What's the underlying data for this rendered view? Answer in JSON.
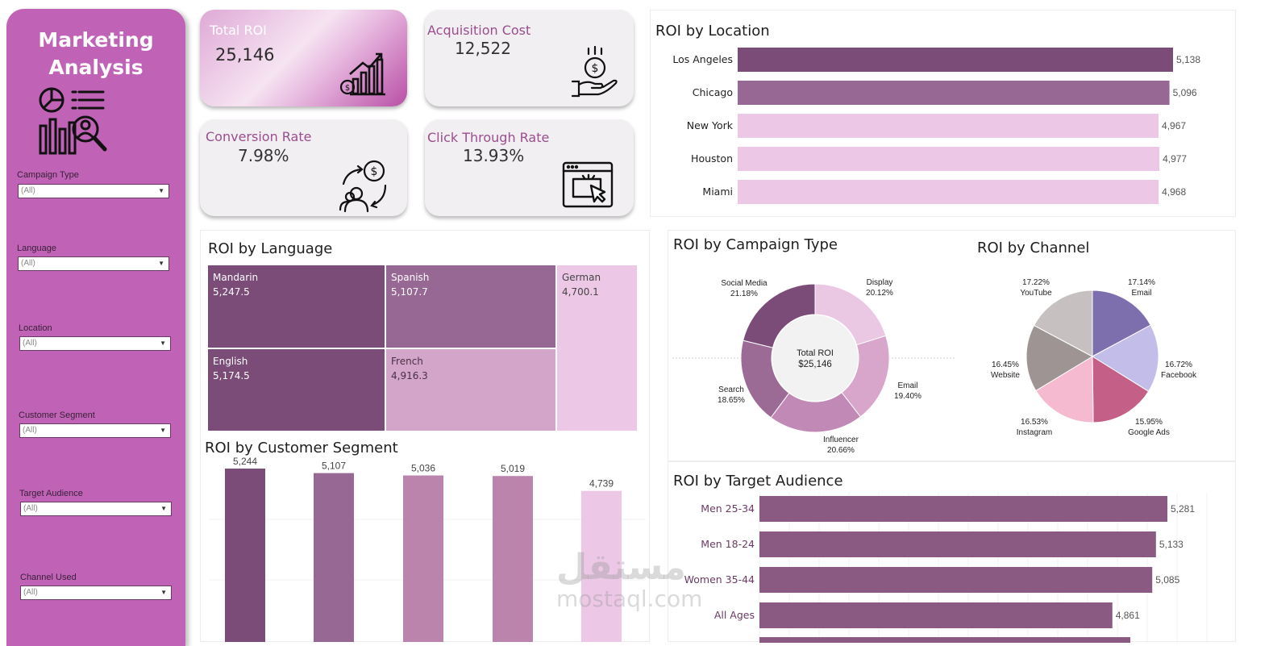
{
  "sidebar": {
    "title_line1": "Marketing",
    "title_line2": "Analysis",
    "filters": [
      {
        "label": "Campaign Type",
        "value": "(All)"
      },
      {
        "label": "Language",
        "value": "(All)"
      },
      {
        "label": "Location",
        "value": "(All)"
      },
      {
        "label": "Customer Segment",
        "value": "(All)"
      },
      {
        "label": "Target Audience",
        "value": "(All)"
      },
      {
        "label": "Channel Used",
        "value": "(All)"
      }
    ]
  },
  "kpis": {
    "total_roi": {
      "label": "Total ROI",
      "value": "25,146"
    },
    "acquisition_cost": {
      "label": "Acquisition Cost",
      "value": "12,522"
    },
    "conversion_rate": {
      "label": "Conversion Rate",
      "value": "7.98%"
    },
    "click_through_rate": {
      "label": "Click Through Rate",
      "value": "13.93%"
    }
  },
  "colors": {
    "sidebar": "#c063b6",
    "dark_plum": "#7b4c78",
    "mid_plum": "#986895",
    "mauve": "#bb84ad",
    "light_pink": "#edc8e6",
    "audience_bar": "#8a5a83"
  },
  "chart_data": [
    {
      "id": "location",
      "type": "bar",
      "orientation": "horizontal",
      "title": "ROI by Location",
      "categories": [
        "Los Angeles",
        "Chicago",
        "New York",
        "Houston",
        "Miami"
      ],
      "values": [
        5138,
        5096,
        4967,
        4977,
        4968
      ],
      "labels": [
        "5,138",
        "5,096",
        "4,967",
        "4,977",
        "4,968"
      ],
      "colors": [
        "#7b4c78",
        "#986895",
        "#edc8e6",
        "#edc8e6",
        "#edc8e6"
      ]
    },
    {
      "id": "language",
      "type": "treemap",
      "title": "ROI by Language",
      "categories": [
        "Mandarin",
        "Spanish",
        "German",
        "English",
        "French"
      ],
      "values": [
        5247.5,
        5107.7,
        4700.1,
        5174.5,
        4916.3
      ],
      "labels": [
        "5,247.5",
        "5,107.7",
        "4,700.1",
        "5,174.5",
        "4,916.3"
      ],
      "colors": [
        "#7b4c78",
        "#986895",
        "#edc8e6",
        "#7b4c78",
        "#d3a5c8"
      ]
    },
    {
      "id": "segment",
      "type": "bar",
      "orientation": "vertical",
      "title": "ROI by Customer Segment",
      "categories": [],
      "values": [
        5244,
        5107,
        5036,
        5019,
        4739
      ],
      "labels": [
        "5,244",
        "5,107",
        "5,036",
        "5,019",
        "4,739"
      ],
      "colors": [
        "#7b4c78",
        "#986895",
        "#bb84ad",
        "#bb84ad",
        "#edc8e6"
      ]
    },
    {
      "id": "campaign",
      "type": "pie",
      "variant": "donut",
      "title": "ROI by Campaign Type",
      "center_label": "Total ROI",
      "center_value": "$25,146",
      "categories": [
        "Display",
        "Email",
        "Influencer",
        "Search",
        "Social Media"
      ],
      "values": [
        20.12,
        19.4,
        20.66,
        18.65,
        21.18
      ],
      "labels": [
        "20.12%",
        "19.40%",
        "20.66%",
        "18.65%",
        "21.18%"
      ],
      "colors": [
        "#eac7e3",
        "#d7a6ca",
        "#c189b5",
        "#9b6a95",
        "#7b4c78"
      ]
    },
    {
      "id": "channel",
      "type": "pie",
      "title": "ROI by Channel",
      "categories": [
        "Email",
        "Facebook",
        "Google Ads",
        "Instagram",
        "Website",
        "YouTube"
      ],
      "values": [
        17.14,
        16.72,
        15.95,
        16.53,
        16.45,
        17.22
      ],
      "labels": [
        "17.14%",
        "16.72%",
        "15.95%",
        "16.53%",
        "16.45%",
        "17.22%"
      ],
      "colors": [
        "#7d6fad",
        "#c3bdea",
        "#c45f87",
        "#f6bad0",
        "#9f9494",
        "#c7c0c0"
      ]
    },
    {
      "id": "audience",
      "type": "bar",
      "orientation": "horizontal",
      "title": "ROI by Target Audience",
      "categories": [
        "Men 25-34",
        "Men 18-24",
        "Women 35-44",
        "All Ages"
      ],
      "values": [
        5281,
        5133,
        5085,
        4861
      ],
      "labels": [
        "5,281",
        "5,133",
        "5,085",
        "4,861"
      ],
      "colors": [
        "#8a5a83",
        "#8a5a83",
        "#8a5a83",
        "#8a5a83"
      ]
    }
  ],
  "watermark": {
    "arabic": "مستقل",
    "latin": "mostaql.com"
  }
}
